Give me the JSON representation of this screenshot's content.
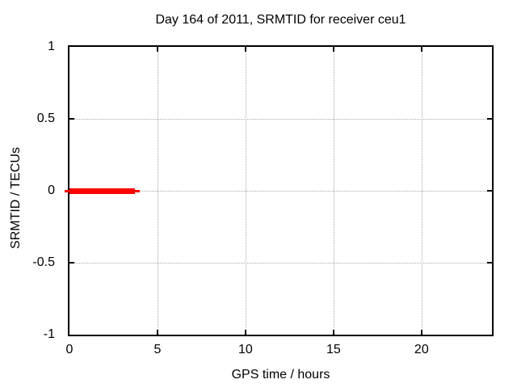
{
  "chart_data": {
    "type": "line",
    "title": "Day 164 of 2011, SRMTID for receiver ceu1",
    "xlabel": "GPS time / hours",
    "ylabel": "SRMTID / TECUs",
    "xlim": [
      0,
      24
    ],
    "ylim": [
      -1,
      1
    ],
    "xticks": [
      0,
      5,
      10,
      15,
      20
    ],
    "yticks": [
      -1,
      -0.5,
      0,
      0.5,
      1
    ],
    "grid": true,
    "grid_style": "dotted",
    "legend": "none",
    "colors": {
      "background": "#ffffff",
      "border": "#000000",
      "grid": "#a8a8a8",
      "text": "#000000"
    },
    "series": [
      {
        "name": "SRMTID",
        "color": "#ff0000",
        "style": "thick horizontal segment with thin end caps",
        "y": 0,
        "points": [
          {
            "x": 0,
            "y": 0
          },
          {
            "x": 3.7,
            "y": 0
          }
        ]
      }
    ]
  }
}
